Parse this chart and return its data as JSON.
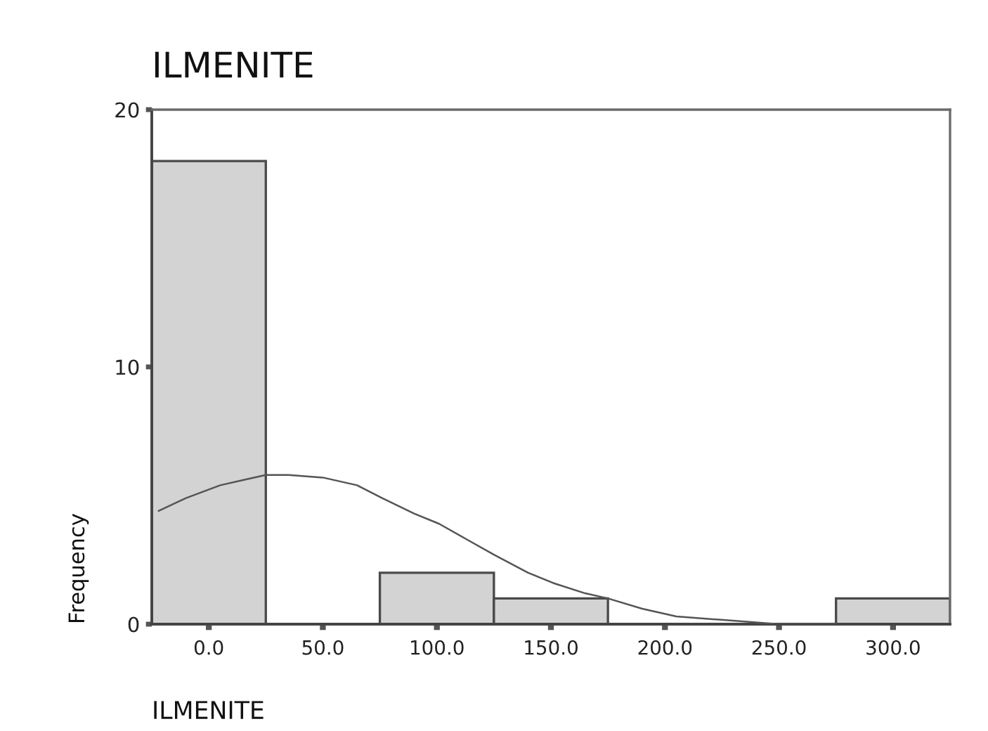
{
  "chart_data": {
    "type": "histogram",
    "title": "ILMENITE",
    "xlabel": "ILMENITE",
    "ylabel": "Frequency",
    "bins": [
      -25,
      25,
      75,
      125,
      175,
      225,
      275,
      325
    ],
    "series": [
      {
        "color": "#d3d3d3",
        "values": [
          18,
          0,
          2,
          1,
          0,
          0,
          1
        ]
      },
      {
        "type": "line",
        "color": "#555555",
        "x": [
          -22,
          -10,
          5,
          15,
          25,
          35,
          50,
          65,
          76,
          90,
          101,
          113,
          125,
          140,
          151,
          165,
          175,
          190,
          205,
          220,
          235,
          250,
          262,
          275
        ],
        "values": [
          4.4,
          4.9,
          5.4,
          5.6,
          5.8,
          5.8,
          5.7,
          5.4,
          4.9,
          4.3,
          3.9,
          3.3,
          2.7,
          2.0,
          1.6,
          1.2,
          1.0,
          0.6,
          0.3,
          0.2,
          0.1,
          0.0,
          0.0,
          0.0
        ]
      }
    ],
    "xlim": [
      -25,
      325
    ],
    "ylim": [
      0,
      20
    ],
    "xticks": [
      {
        "value": 0,
        "label": "0.0"
      },
      {
        "value": 50,
        "label": "50.0"
      },
      {
        "value": 100,
        "label": "100.0"
      },
      {
        "value": 150,
        "label": "150.0"
      },
      {
        "value": 200,
        "label": "200.0"
      },
      {
        "value": 250,
        "label": "250.0"
      },
      {
        "value": 300,
        "label": "300.0"
      }
    ],
    "yticks": [
      0,
      10,
      20
    ]
  }
}
